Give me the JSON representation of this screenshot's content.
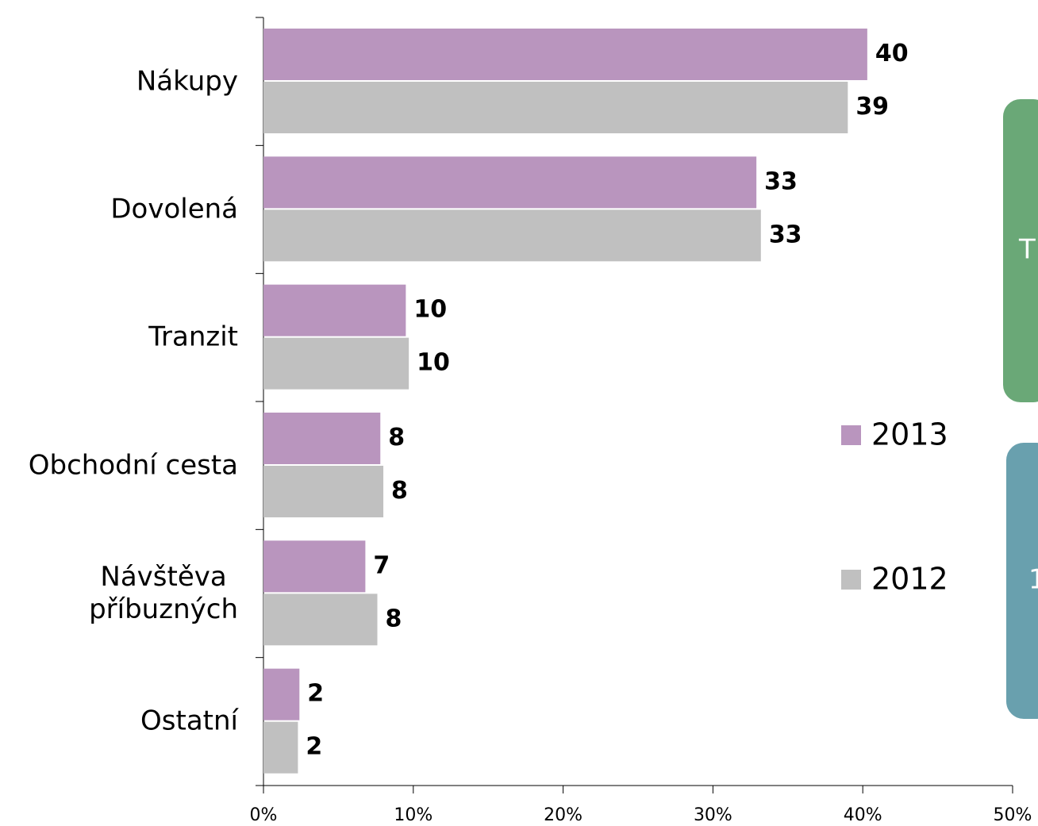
{
  "chart_data": {
    "type": "bar",
    "orientation": "horizontal",
    "categories": [
      "Nákupy",
      "Dovolená",
      "Tranzit",
      "Obchodní cesta",
      "Návštěva\npříbuzných",
      "Ostatní"
    ],
    "series": [
      {
        "name": "2013",
        "color": "#b995be",
        "values": [
          40.3,
          32.9,
          9.5,
          7.8,
          6.8,
          2.4
        ],
        "value_labels": [
          "40",
          "33",
          "10",
          "8",
          "7",
          "2"
        ]
      },
      {
        "name": "2012",
        "color": "#c0c0c0",
        "values": [
          39.0,
          33.2,
          9.7,
          8.0,
          7.6,
          2.3
        ],
        "value_labels": [
          "39",
          "33",
          "10",
          "8",
          "8",
          "2"
        ]
      }
    ],
    "xlim": [
      0,
      50
    ],
    "xticks": [
      {
        "value": 0,
        "label": "0%"
      },
      {
        "value": 10,
        "label": "10%"
      },
      {
        "value": 20,
        "label": "20%"
      },
      {
        "value": 30,
        "label": "30%"
      },
      {
        "value": 40,
        "label": "40%"
      },
      {
        "value": 50,
        "label": "50%"
      }
    ],
    "legend": "right",
    "annotations": [
      "T",
      "1"
    ]
  }
}
